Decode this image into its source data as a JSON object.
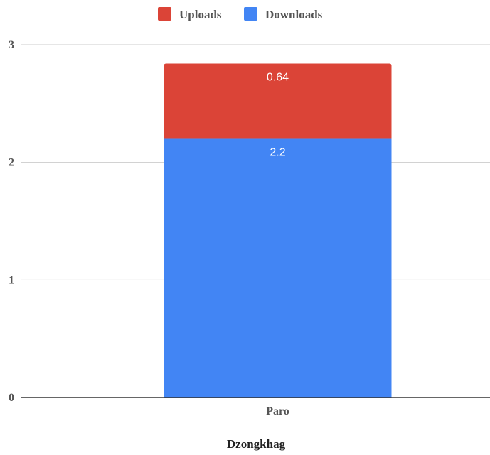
{
  "chart_data": {
    "type": "bar",
    "stacked": true,
    "categories": [
      "Paro"
    ],
    "series": [
      {
        "name": "Downloads",
        "values": [
          2.2
        ],
        "labels": [
          "2.2"
        ],
        "color": "#4285f4"
      },
      {
        "name": "Uploads",
        "values": [
          0.64
        ],
        "labels": [
          "0.64"
        ],
        "color": "#db4437"
      }
    ],
    "legend": {
      "position": "top",
      "order": [
        "Uploads",
        "Downloads"
      ]
    },
    "xlabel": "Dzongkhag",
    "ylabel": "",
    "ylim": [
      0,
      3
    ],
    "yticks": [
      "0",
      "1",
      "2",
      "3"
    ],
    "grid": true
  },
  "colors": {
    "gridline": "#cccccc",
    "baseline": "#333333"
  }
}
